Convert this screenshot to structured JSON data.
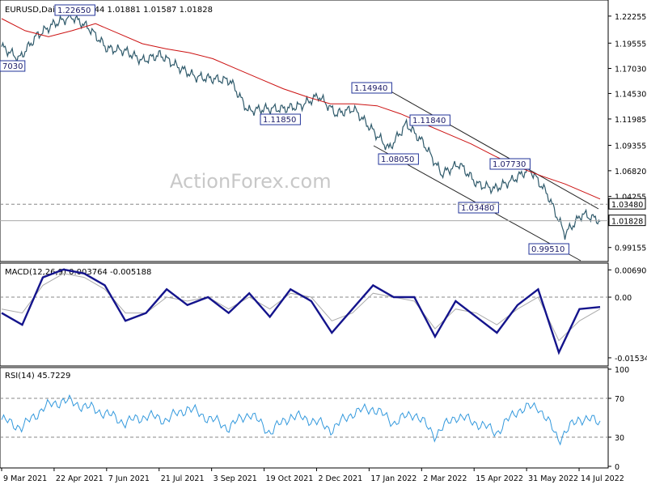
{
  "chart_data": {
    "type": "candlestick",
    "symbol_label": "EURUSD,Daily",
    "ohlc_label": "1.01744 1.01881 1.01587 1.01828",
    "watermark": "ActionForex.com",
    "price_axis": {
      "ylim": [
        0.98,
        1.237
      ],
      "ticks": [
        "1.22255",
        "1.19555",
        "1.17030",
        "1.14530",
        "1.11985",
        "1.09355",
        "1.06820",
        "1.04255",
        "0.99155"
      ],
      "tick_values": [
        1.22255,
        1.19555,
        1.1703,
        1.1453,
        1.11985,
        1.09355,
        1.0682,
        1.04255,
        0.99155
      ],
      "current_price_label": "1.01828",
      "current_price": 1.01828,
      "level_label": "1.03480",
      "level": 1.0348
    },
    "x_axis_labels": [
      "9 Mar 2021",
      "22 Apr 2021",
      "7 Jun 2021",
      "21 Jul 2021",
      "3 Sep 2021",
      "19 Oct 2021",
      "2 Dec 2021",
      "17 Jan 2022",
      "2 Mar 2022",
      "15 Apr 2022",
      "31 May 2022",
      "14 Jul 2022"
    ],
    "price_series": {
      "name": "EURUSD",
      "index": [
        0,
        15,
        30,
        45,
        60,
        75,
        90,
        105,
        120,
        135,
        150,
        165,
        180,
        195,
        210,
        225,
        240,
        255,
        270,
        285,
        300,
        315,
        330,
        345,
        360,
        375,
        390,
        405,
        420,
        435,
        450,
        465,
        480,
        495,
        510
      ],
      "close": [
        1.192,
        1.18,
        1.203,
        1.215,
        1.222,
        1.21,
        1.19,
        1.188,
        1.178,
        1.184,
        1.172,
        1.162,
        1.16,
        1.158,
        1.128,
        1.13,
        1.13,
        1.133,
        1.143,
        1.125,
        1.13,
        1.11,
        1.09,
        1.115,
        1.095,
        1.065,
        1.075,
        1.055,
        1.05,
        1.0585,
        1.07,
        1.045,
        1.005,
        1.025,
        1.0183
      ]
    },
    "moving_average": {
      "index": [
        0,
        20,
        40,
        60,
        80,
        100,
        120,
        140,
        160,
        180,
        200,
        220,
        240,
        260,
        280,
        300,
        320,
        340,
        360,
        380,
        400,
        420,
        440,
        460,
        480,
        500,
        510
      ],
      "values": [
        1.22,
        1.208,
        1.202,
        1.208,
        1.215,
        1.205,
        1.195,
        1.19,
        1.186,
        1.18,
        1.17,
        1.16,
        1.15,
        1.142,
        1.135,
        1.135,
        1.133,
        1.125,
        1.115,
        1.105,
        1.095,
        1.083,
        1.072,
        1.063,
        1.055,
        1.045,
        1.04
      ]
    },
    "annotations": [
      {
        "label": "1.22650",
        "value": 1.2265
      },
      {
        "label": "7030",
        "value": 1.1703
      },
      {
        "label": "1.11850",
        "value": 1.1185
      },
      {
        "label": "1.14940",
        "value": 1.1494
      },
      {
        "label": "1.11840",
        "value": 1.1184
      },
      {
        "label": "1.08050",
        "value": 1.0805
      },
      {
        "label": "1.07730",
        "value": 1.0773
      },
      {
        "label": "1.03480",
        "value": 1.0348
      },
      {
        "label": "0.99510",
        "value": 0.9951
      }
    ],
    "macd": {
      "label": "MACD(12,26,9) 0.003764 -0.005188",
      "ylim": [
        -0.017,
        0.008
      ],
      "ticks": [
        "0.006906",
        "0.00",
        "-0.015348"
      ],
      "tick_values": [
        0.006906,
        0.0,
        -0.015348
      ],
      "line": [
        -0.004,
        -0.007,
        0.005,
        0.007,
        0.006,
        0.003,
        -0.006,
        -0.004,
        0.002,
        -0.002,
        0.0,
        -0.004,
        0.001,
        -0.005,
        0.002,
        -0.001,
        -0.009,
        -0.003,
        0.003,
        0.0,
        0.0,
        -0.01,
        -0.001,
        -0.005,
        -0.009,
        -0.002,
        0.002,
        -0.014,
        -0.003,
        -0.0025
      ],
      "signal": [
        -0.003,
        -0.004,
        0.003,
        0.006,
        0.005,
        0.002,
        -0.004,
        -0.004,
        0.0,
        -0.001,
        0.0,
        -0.003,
        0.0,
        -0.003,
        0.001,
        0.0,
        -0.006,
        -0.004,
        0.001,
        0.0,
        -0.001,
        -0.008,
        -0.003,
        -0.004,
        -0.007,
        -0.003,
        0.0,
        -0.011,
        -0.006,
        -0.003
      ]
    },
    "rsi": {
      "label": "RSI(14) 45.7229",
      "ylim": [
        0,
        100
      ],
      "ticks": [
        "100",
        "70",
        "30",
        "0"
      ],
      "tick_values": [
        100,
        70,
        30,
        0
      ],
      "values": [
        48,
        40,
        60,
        68,
        62,
        55,
        45,
        52,
        48,
        60,
        50,
        40,
        55,
        35,
        52,
        48,
        38,
        55,
        60,
        45,
        55,
        32,
        52,
        45,
        35,
        58,
        62,
        28,
        50,
        45.7
      ]
    },
    "colors": {
      "price": "#2f5a6b",
      "moving_average": "#cc1111",
      "macd_line": "#14148c",
      "signal_line": "#aaaaaa",
      "rsi": "#3399dd",
      "grid_dashed": "#888888",
      "channel": "#222222"
    }
  }
}
